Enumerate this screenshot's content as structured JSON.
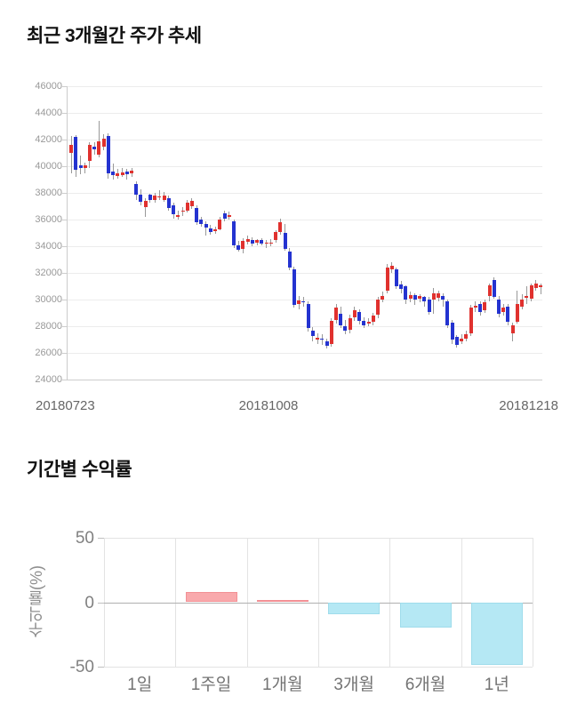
{
  "chart_data": [
    {
      "type": "candlestick",
      "title": "최근 3개월간 주가 추세",
      "x_tick_labels": [
        "20180723",
        "20181008",
        "20181218"
      ],
      "y_ticks": [
        46000,
        44000,
        42000,
        40000,
        38000,
        36000,
        34000,
        32000,
        30000,
        28000,
        26000,
        24000
      ],
      "ylim": [
        24000,
        46000
      ],
      "up_color": "#e0312e",
      "down_color": "#2433d0",
      "wick_color": "#999999",
      "grid_color": "#ececec",
      "axis_color": "#cccccc",
      "candles": [
        [
          41000,
          42250,
          39500,
          41600
        ],
        [
          42200,
          42350,
          39200,
          39750
        ],
        [
          40100,
          40800,
          39400,
          39850
        ],
        [
          39900,
          40300,
          39500,
          40050
        ],
        [
          40400,
          41800,
          39900,
          41600
        ],
        [
          41500,
          41800,
          40900,
          41250
        ],
        [
          40900,
          43400,
          40700,
          41900
        ],
        [
          41500,
          42400,
          41200,
          42100
        ],
        [
          42300,
          42450,
          39100,
          39500
        ],
        [
          39600,
          40200,
          39000,
          39350
        ],
        [
          39300,
          39800,
          39100,
          39450
        ],
        [
          39350,
          39900,
          39200,
          39550
        ],
        [
          39600,
          39800,
          39000,
          39400
        ],
        [
          39450,
          39900,
          39200,
          39650
        ],
        [
          38700,
          38900,
          37500,
          37900
        ],
        [
          37900,
          38300,
          37100,
          37350
        ],
        [
          36950,
          37600,
          36200,
          37400
        ],
        [
          37850,
          37950,
          37300,
          37450
        ],
        [
          37500,
          38000,
          37300,
          37800
        ],
        [
          37650,
          38200,
          37450,
          37750
        ],
        [
          37500,
          38100,
          37350,
          37800
        ],
        [
          37600,
          37800,
          36700,
          36900
        ],
        [
          37100,
          37300,
          36100,
          36400
        ],
        [
          36200,
          36700,
          36000,
          36350
        ],
        [
          36600,
          36950,
          36300,
          36700
        ],
        [
          36700,
          37450,
          36550,
          37300
        ],
        [
          37000,
          37600,
          36800,
          37400
        ],
        [
          36900,
          37100,
          35600,
          35800
        ],
        [
          36000,
          36200,
          35500,
          35700
        ],
        [
          35650,
          35900,
          34800,
          35400
        ],
        [
          35350,
          35600,
          34900,
          35050
        ],
        [
          35150,
          35500,
          34950,
          35250
        ],
        [
          35300,
          36200,
          35200,
          36000
        ],
        [
          36500,
          36700,
          35900,
          36100
        ],
        [
          36200,
          36600,
          36000,
          36350
        ],
        [
          35900,
          36000,
          33900,
          34100
        ],
        [
          34100,
          34400,
          33600,
          33750
        ],
        [
          33800,
          34600,
          33500,
          34400
        ],
        [
          34350,
          34800,
          34150,
          34550
        ],
        [
          34450,
          34650,
          34000,
          34200
        ],
        [
          34250,
          34550,
          34050,
          34450
        ],
        [
          34450,
          34600,
          34100,
          34200
        ],
        [
          34250,
          34500,
          33900,
          34300
        ],
        [
          34200,
          34550,
          34000,
          34250
        ],
        [
          34500,
          35200,
          34300,
          35050
        ],
        [
          35050,
          36100,
          34900,
          35800
        ],
        [
          35000,
          35700,
          33700,
          33800
        ],
        [
          33600,
          33900,
          32200,
          32400
        ],
        [
          32300,
          32500,
          29400,
          29600
        ],
        [
          29700,
          30300,
          29300,
          29950
        ],
        [
          29850,
          30200,
          29500,
          29800
        ],
        [
          29700,
          29850,
          27600,
          27900
        ],
        [
          27700,
          27950,
          26900,
          27300
        ],
        [
          27000,
          27500,
          26700,
          27150
        ],
        [
          27100,
          27400,
          26600,
          27000
        ],
        [
          26900,
          27100,
          26350,
          26550
        ],
        [
          26650,
          28600,
          26450,
          28400
        ],
        [
          28450,
          29650,
          28200,
          29400
        ],
        [
          28950,
          29450,
          27900,
          28050
        ],
        [
          28000,
          28500,
          27400,
          27700
        ],
        [
          27750,
          28900,
          27500,
          28600
        ],
        [
          28650,
          29500,
          28400,
          29200
        ],
        [
          29100,
          29300,
          28150,
          28400
        ],
        [
          28400,
          28700,
          27900,
          28100
        ],
        [
          28200,
          28600,
          28000,
          28350
        ],
        [
          28350,
          29000,
          28100,
          28800
        ],
        [
          28850,
          30200,
          28600,
          30000
        ],
        [
          30000,
          30600,
          29800,
          30250
        ],
        [
          30700,
          32700,
          30500,
          32400
        ],
        [
          32300,
          32800,
          32000,
          32550
        ],
        [
          32250,
          32400,
          30800,
          31000
        ],
        [
          31150,
          31400,
          30500,
          30800
        ],
        [
          31000,
          31100,
          29700,
          30000
        ],
        [
          30050,
          30600,
          29800,
          30350
        ],
        [
          30350,
          30500,
          29600,
          30000
        ],
        [
          30050,
          30400,
          29800,
          30250
        ],
        [
          30200,
          30300,
          29500,
          29850
        ],
        [
          30000,
          30200,
          28900,
          29100
        ],
        [
          30000,
          30900,
          28950,
          30450
        ],
        [
          30150,
          30700,
          29900,
          30500
        ],
        [
          30300,
          30500,
          29500,
          30000
        ],
        [
          29900,
          30000,
          27900,
          28100
        ],
        [
          28300,
          28500,
          26700,
          27000
        ],
        [
          27200,
          27350,
          26400,
          26600
        ],
        [
          26900,
          27400,
          26650,
          27100
        ],
        [
          27050,
          27650,
          26850,
          27400
        ],
        [
          27450,
          29600,
          27300,
          29400
        ],
        [
          29400,
          29900,
          29100,
          29550
        ],
        [
          29700,
          29900,
          28800,
          29050
        ],
        [
          29200,
          30000,
          29000,
          29800
        ],
        [
          30250,
          31200,
          29900,
          31100
        ],
        [
          31500,
          31700,
          30100,
          30200
        ],
        [
          30000,
          30300,
          28700,
          28950
        ],
        [
          29050,
          29700,
          28800,
          29400
        ],
        [
          29500,
          29650,
          28100,
          28350
        ],
        [
          27450,
          28300,
          26900,
          28100
        ],
        [
          28350,
          30700,
          28200,
          29700
        ],
        [
          29450,
          30400,
          29300,
          30000
        ],
        [
          30150,
          31000,
          29700,
          30250
        ],
        [
          30100,
          31200,
          29900,
          31100
        ],
        [
          30900,
          31500,
          30700,
          31200
        ],
        [
          30950,
          31200,
          30400,
          31050
        ]
      ]
    },
    {
      "type": "bar",
      "title": "기간별 수익률",
      "ylabel": "수익률(%)",
      "categories": [
        "1일",
        "1주일",
        "1개월",
        "3개월",
        "6개월",
        "1년"
      ],
      "values": [
        0,
        8,
        1.5,
        -9,
        -19.5,
        -48.5
      ],
      "y_ticks": [
        50,
        0,
        -50
      ],
      "ylim": [
        -50,
        50
      ],
      "positive_color": "#f9a9ac",
      "positive_border": "#f29095",
      "negative_color": "#b5e8f4",
      "negative_border": "#9fdceb",
      "grid_color": "#e3e3e3",
      "zero_line_color": "#b0b0b0"
    }
  ]
}
